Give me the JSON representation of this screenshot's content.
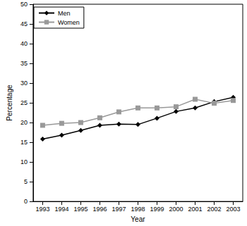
{
  "chart_data": {
    "type": "line",
    "x_label": "Year",
    "y_label": "Percentage",
    "categories": [
      "1993",
      "1994",
      "1995",
      "1996",
      "1997",
      "1998",
      "1999",
      "2000",
      "2001",
      "2002",
      "2003"
    ],
    "series": [
      {
        "name": "Men",
        "color": "#000000",
        "marker": "diamond",
        "line_style": "solid",
        "values": [
          15.8,
          16.8,
          18.0,
          19.3,
          19.6,
          19.5,
          21.1,
          22.8,
          23.7,
          25.3,
          26.4
        ]
      },
      {
        "name": "Women",
        "color": "#999999",
        "marker": "square",
        "line_style": "solid",
        "values": [
          19.3,
          19.8,
          20.0,
          21.2,
          22.7,
          23.7,
          23.7,
          24.0,
          25.9,
          24.9,
          25.6
        ]
      }
    ],
    "ylim": [
      0,
      50
    ],
    "yticks": [
      0,
      5,
      10,
      15,
      20,
      25,
      30,
      35,
      40,
      45,
      50
    ],
    "grid": false,
    "legend": "upper left"
  }
}
